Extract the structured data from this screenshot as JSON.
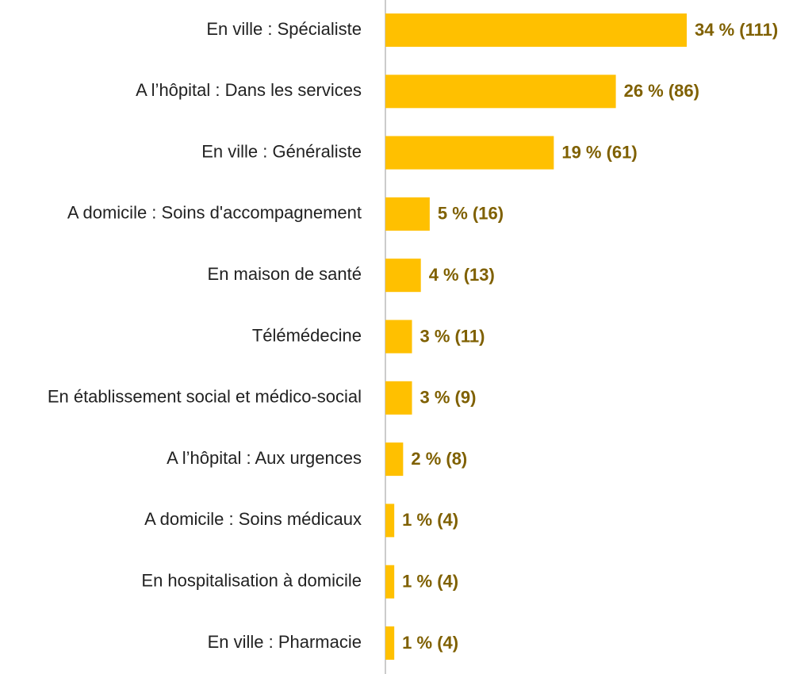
{
  "chart_data": {
    "type": "bar",
    "orientation": "horizontal",
    "categories": [
      "En ville : Spécialiste",
      "A l’hôpital : Dans les services",
      "En ville : Généraliste",
      "A domicile : Soins d'accompagnement",
      "En maison de santé",
      "Télémédecine",
      "En établissement social et médico-social",
      "A l’hôpital : Aux urgences",
      "A domicile : Soins médicaux",
      "En hospitalisation à domicile",
      "En ville : Pharmacie"
    ],
    "values": [
      34,
      26,
      19,
      5,
      4,
      3,
      3,
      2,
      1,
      1,
      1
    ],
    "value_labels": [
      "34 % (111)",
      "26 % (86)",
      "19 % (61)",
      "5 % (16)",
      "4 % (13)",
      "3 % (11)",
      "3 % (9)",
      "2 % (8)",
      "1 % (4)",
      "1 % (4)",
      "1 % (4)"
    ],
    "color": "#ffc000"
  }
}
